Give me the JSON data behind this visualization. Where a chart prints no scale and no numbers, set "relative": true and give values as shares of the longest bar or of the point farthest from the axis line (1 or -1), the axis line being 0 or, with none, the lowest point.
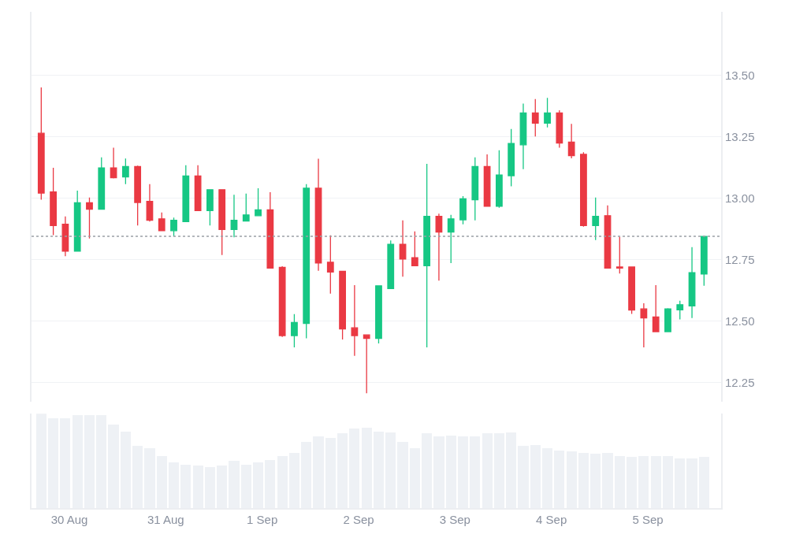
{
  "chart_data": [
    {
      "type": "candlestick",
      "x": [
        "--08-29T17:00",
        "--08-29T20:00",
        "--08-29T23:00",
        "--08-30T02:00",
        "--08-30T05:00",
        "--08-30T08:00",
        "--08-30T11:00",
        "--08-30T14:00",
        "--08-30T17:00",
        "--08-30T20:00",
        "--08-30T23:00",
        "--08-31T02:00",
        "--08-31T05:00",
        "--08-31T08:00",
        "--08-31T11:00",
        "--08-31T14:00",
        "--08-31T17:00",
        "--08-31T20:00",
        "--08-31T23:00",
        "--09-01T02:00",
        "--09-01T05:00",
        "--09-01T08:00",
        "--09-01T11:00",
        "--09-01T14:00",
        "--09-01T17:00",
        "--09-01T20:00",
        "--09-01T23:00",
        "--09-02T02:00",
        "--09-02T05:00",
        "--09-02T08:00",
        "--09-02T11:00",
        "--09-02T14:00",
        "--09-02T17:00",
        "--09-02T20:00",
        "--09-02T23:00",
        "--09-03T02:00",
        "--09-03T05:00",
        "--09-03T08:00",
        "--09-03T11:00",
        "--09-03T14:00",
        "--09-03T17:00",
        "--09-03T20:00",
        "--09-03T23:00",
        "--09-04T02:00",
        "--09-04T05:00",
        "--09-04T08:00",
        "--09-04T11:00",
        "--09-04T14:00",
        "--09-04T17:00",
        "--09-04T20:00",
        "--09-04T23:00",
        "--09-05T02:00",
        "--09-05T05:00",
        "--09-05T08:00",
        "--09-05T11:00",
        "--09-05T14:00"
      ],
      "ohlc": [
        [
          13.265,
          13.452,
          12.994,
          13.021
        ],
        [
          13.026,
          13.124,
          12.85,
          12.889
        ],
        [
          12.894,
          12.926,
          12.764,
          12.784
        ],
        [
          12.784,
          13.031,
          12.784,
          12.982
        ],
        [
          12.982,
          13.003,
          12.836,
          12.955
        ],
        [
          12.955,
          13.167,
          12.955,
          13.124
        ],
        [
          13.124,
          13.206,
          13.081,
          13.084
        ],
        [
          13.087,
          13.162,
          13.058,
          13.129
        ],
        [
          13.129,
          13.133,
          12.889,
          12.983
        ],
        [
          12.987,
          13.058,
          12.905,
          12.91
        ],
        [
          12.916,
          12.942,
          12.868,
          12.868
        ],
        [
          12.868,
          12.921,
          12.844,
          12.91
        ],
        [
          12.905,
          13.135,
          12.905,
          13.091
        ],
        [
          13.091,
          13.135,
          12.95,
          12.95
        ],
        [
          12.95,
          13.035,
          12.889,
          13.035
        ],
        [
          13.035,
          13.035,
          12.769,
          12.873
        ],
        [
          12.873,
          13.014,
          12.841,
          12.91
        ],
        [
          12.907,
          13.019,
          12.907,
          12.932
        ],
        [
          12.929,
          13.041,
          12.929,
          12.953
        ],
        [
          12.953,
          13.025,
          12.715,
          12.715
        ],
        [
          12.718,
          12.723,
          12.435,
          12.44
        ],
        [
          12.44,
          12.528,
          12.392,
          12.494
        ],
        [
          12.49,
          13.058,
          12.429,
          13.041
        ],
        [
          13.041,
          13.161,
          12.704,
          12.736
        ],
        [
          12.739,
          12.849,
          12.611,
          12.699
        ],
        [
          12.702,
          12.702,
          12.424,
          12.467
        ],
        [
          12.472,
          12.646,
          12.358,
          12.44
        ],
        [
          12.443,
          12.443,
          12.205,
          12.429
        ],
        [
          12.429,
          12.643,
          12.408,
          12.643
        ],
        [
          12.632,
          12.828,
          12.632,
          12.812
        ],
        [
          12.812,
          12.91,
          12.68,
          12.752
        ],
        [
          12.758,
          12.865,
          12.725,
          12.725
        ],
        [
          12.725,
          13.14,
          12.392,
          12.926
        ],
        [
          12.926,
          12.937,
          12.664,
          12.862
        ],
        [
          12.862,
          12.932,
          12.736,
          12.916
        ],
        [
          12.912,
          13.009,
          12.894,
          12.998
        ],
        [
          12.994,
          13.167,
          12.91,
          13.129
        ],
        [
          13.129,
          13.179,
          12.967,
          12.967
        ],
        [
          12.967,
          13.196,
          12.961,
          13.095
        ],
        [
          13.092,
          13.282,
          13.049,
          13.223
        ],
        [
          13.218,
          13.386,
          13.119,
          13.348
        ],
        [
          13.348,
          13.404,
          13.252,
          13.306
        ],
        [
          13.306,
          13.409,
          13.289,
          13.348
        ],
        [
          13.348,
          13.359,
          13.206,
          13.225
        ],
        [
          13.229,
          13.303,
          13.163,
          13.174
        ],
        [
          13.179,
          13.188,
          12.884,
          12.889
        ],
        [
          12.889,
          13.003,
          12.83,
          12.926
        ],
        [
          12.929,
          12.971,
          12.715,
          12.715
        ],
        [
          12.72,
          12.843,
          12.693,
          12.715
        ],
        [
          12.72,
          12.72,
          12.529,
          12.544
        ],
        [
          12.549,
          12.572,
          12.392,
          12.512
        ],
        [
          12.516,
          12.646,
          12.456,
          12.456
        ],
        [
          12.456,
          12.552,
          12.456,
          12.549
        ],
        [
          12.545,
          12.582,
          12.506,
          12.566
        ],
        [
          12.561,
          12.801,
          12.512,
          12.697
        ],
        [
          12.691,
          12.844,
          12.643,
          12.844
        ]
      ],
      "colors": [
        "#ea3943",
        "#ea3943",
        "#ea3943",
        "#16c784",
        "#ea3943",
        "#16c784",
        "#ea3943",
        "#16c784",
        "#ea3943",
        "#ea3943",
        "#ea3943",
        "#16c784",
        "#16c784",
        "#ea3943",
        "#16c784",
        "#ea3943",
        "#16c784",
        "#16c784",
        "#16c784",
        "#ea3943",
        "#ea3943",
        "#16c784",
        "#16c784",
        "#ea3943",
        "#ea3943",
        "#ea3943",
        "#ea3943",
        "#ea3943",
        "#16c784",
        "#16c784",
        "#ea3943",
        "#ea3943",
        "#16c784",
        "#ea3943",
        "#16c784",
        "#16c784",
        "#16c784",
        "#ea3943",
        "#16c784",
        "#16c784",
        "#16c784",
        "#ea3943",
        "#16c784",
        "#ea3943",
        "#ea3943",
        "#ea3943",
        "#16c784",
        "#ea3943",
        "#ea3943",
        "#ea3943",
        "#ea3943",
        "#ea3943",
        "#16c784",
        "#16c784",
        "#16c784",
        "#16c784"
      ],
      "xlim": [
        "--08-29T14:35",
        "--09-05T18:15"
      ],
      "ylim": [
        12.17,
        13.76
      ],
      "yticks": [
        12.25,
        {
          "value": 12.5,
          "label": "12.50"
        },
        12.75,
        {
          "value": 13.0,
          "label": "13.00"
        },
        13.25,
        {
          "value": 13.5,
          "label": "13.50"
        }
      ],
      "grid": "y",
      "tick_labels": "y",
      "ref_lines": [
        {
          "axis": "y",
          "value": 12.845,
          "color": "#9aa0a6",
          "line_style": "dotted"
        }
      ]
    },
    {
      "type": "bar",
      "relative": true,
      "color": "#eef1f5",
      "x": [
        "--08-29T17:00",
        "--08-29T20:00",
        "--08-29T23:00",
        "--08-30T02:00",
        "--08-30T05:00",
        "--08-30T08:00",
        "--08-30T11:00",
        "--08-30T14:00",
        "--08-30T17:00",
        "--08-30T20:00",
        "--08-30T23:00",
        "--08-31T02:00",
        "--08-31T05:00",
        "--08-31T08:00",
        "--08-31T11:00",
        "--08-31T14:00",
        "--08-31T17:00",
        "--08-31T20:00",
        "--08-31T23:00",
        "--09-01T02:00",
        "--09-01T05:00",
        "--09-01T08:00",
        "--09-01T11:00",
        "--09-01T14:00",
        "--09-01T17:00",
        "--09-01T20:00",
        "--09-01T23:00",
        "--09-02T02:00",
        "--09-02T05:00",
        "--09-02T08:00",
        "--09-02T11:00",
        "--09-02T14:00",
        "--09-02T17:00",
        "--09-02T20:00",
        "--09-02T23:00",
        "--09-03T02:00",
        "--09-03T05:00",
        "--09-03T08:00",
        "--09-03T11:00",
        "--09-03T14:00",
        "--09-03T17:00",
        "--09-03T20:00",
        "--09-03T23:00",
        "--09-04T02:00",
        "--09-04T05:00",
        "--09-04T08:00",
        "--09-04T11:00",
        "--09-04T14:00",
        "--09-04T17:00",
        "--09-04T20:00",
        "--09-04T23:00",
        "--09-05T02:00",
        "--09-05T05:00",
        "--09-05T08:00",
        "--09-05T11:00",
        "--09-05T14:00"
      ],
      "values": [
        1.0,
        0.95,
        0.95,
        0.98,
        0.98,
        0.98,
        0.88,
        0.81,
        0.66,
        0.63,
        0.55,
        0.48,
        0.46,
        0.45,
        0.43,
        0.45,
        0.5,
        0.46,
        0.48,
        0.51,
        0.55,
        0.58,
        0.7,
        0.76,
        0.74,
        0.79,
        0.84,
        0.85,
        0.81,
        0.8,
        0.7,
        0.63,
        0.79,
        0.76,
        0.77,
        0.76,
        0.76,
        0.79,
        0.79,
        0.8,
        0.66,
        0.67,
        0.63,
        0.61,
        0.6,
        0.58,
        0.57,
        0.58,
        0.55,
        0.54,
        0.55,
        0.55,
        0.55,
        0.52,
        0.52,
        0.54
      ],
      "xlim": [
        "--08-29T14:35",
        "--09-05T18:15"
      ],
      "xticks": [
        {
          "value": "--08-30",
          "label": "30 Aug"
        },
        {
          "value": "--08-31",
          "label": "31 Aug"
        },
        {
          "value": "--09-01",
          "label": "1 Sep"
        },
        {
          "value": "--09-02",
          "label": "2 Sep"
        },
        {
          "value": "--09-03",
          "label": "3 Sep"
        },
        {
          "value": "--09-04",
          "label": "4 Sep"
        },
        {
          "value": "--09-05",
          "label": "5 Sep"
        }
      ],
      "tick_labels": "x"
    }
  ]
}
